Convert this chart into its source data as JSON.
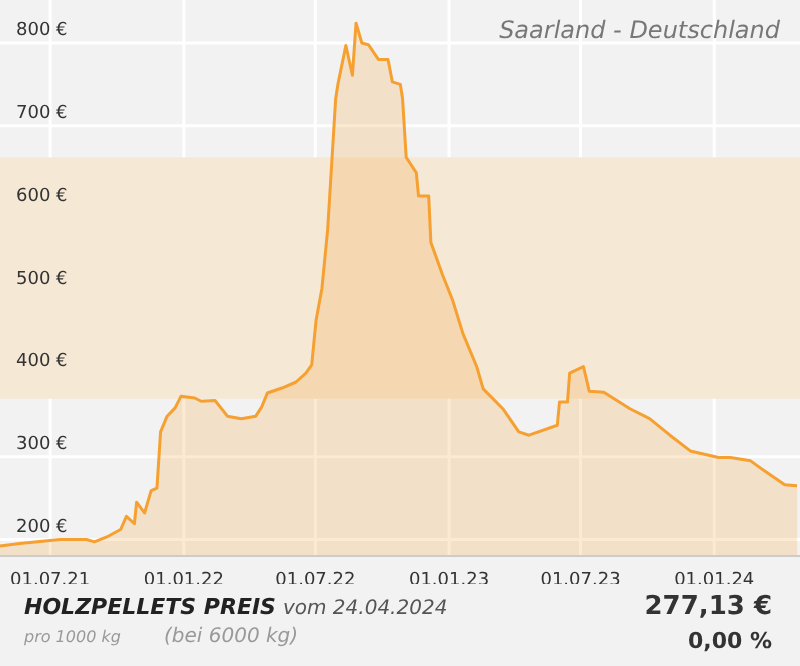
{
  "chart_data": {
    "type": "area",
    "title": "HOLZPELLETS PREIS",
    "subtitle": "Saarland - Deutschland",
    "annotations": [
      "vom 24.04.2024",
      "pro 1000 kg",
      "(bei 6000 kg)",
      "277,13 €",
      "0,00 %"
    ],
    "x": [
      "2021-04-23",
      "2021-05-20",
      "2021-07-15",
      "2021-08-20",
      "2021-08-31",
      "2021-09-17",
      "2021-10-06",
      "2021-10-14",
      "2021-10-25",
      "2021-10-28",
      "2021-11-08",
      "2021-11-17",
      "2021-11-25",
      "2021-11-30",
      "2021-12-09",
      "2021-12-20",
      "2021-12-28",
      "2022-01-16",
      "2022-01-25",
      "2022-02-13",
      "2022-03-02",
      "2022-03-21",
      "2022-04-10",
      "2022-04-18",
      "2022-04-26",
      "2022-05-16",
      "2022-06-04",
      "2022-06-18",
      "2022-06-26",
      "2022-07-02",
      "2022-07-10",
      "2022-07-18",
      "2022-07-29",
      "2022-08-01",
      "2022-08-12",
      "2022-08-21",
      "2022-08-26",
      "2022-09-03",
      "2022-09-12",
      "2022-09-26",
      "2022-10-09",
      "2022-10-15",
      "2022-10-26",
      "2022-10-29",
      "2022-11-03",
      "2022-11-17",
      "2022-11-20",
      "2022-12-04",
      "2022-12-07",
      "2022-12-23",
      "2023-01-06",
      "2023-01-20",
      "2023-02-08",
      "2023-02-17",
      "2023-03-16",
      "2023-04-07",
      "2023-04-21",
      "2023-05-30",
      "2023-06-02",
      "2023-06-13",
      "2023-06-16",
      "2023-07-05",
      "2023-07-13",
      "2023-08-02",
      "2023-09-07",
      "2023-10-04",
      "2023-11-01",
      "2023-11-29",
      "2024-01-07",
      "2024-01-23",
      "2024-02-20",
      "2024-03-10",
      "2024-04-07",
      "2024-04-24"
    ],
    "series": [
      {
        "color": "#f5a030",
        "values": [
          192,
          195,
          200,
          200,
          197,
          203,
          212,
          228,
          219,
          245,
          232,
          259,
          262,
          330,
          349,
          359,
          373,
          371,
          367,
          368,
          349,
          346,
          349,
          360,
          377,
          383,
          390,
          401,
          411,
          465,
          503,
          575,
          733,
          750,
          797,
          761,
          824,
          800,
          798,
          780,
          780,
          753,
          750,
          733,
          662,
          643,
          615,
          615,
          559,
          520,
          489,
          449,
          409,
          382,
          358,
          330,
          326,
          338,
          366,
          366,
          401,
          409,
          379,
          378,
          358,
          346,
          326,
          307,
          299,
          299,
          295,
          283,
          266,
          265
        ]
      }
    ],
    "xlim": [
      "2021-04-23",
      "2024-04-28"
    ],
    "xticks": [
      {
        "value": "2021-07-01",
        "label": "01.07.21"
      },
      {
        "value": "2022-01-01",
        "label": "01.01.22"
      },
      {
        "value": "2022-07-01",
        "label": "01.07.22"
      },
      {
        "value": "2023-01-01",
        "label": "01.01.23"
      },
      {
        "value": "2023-07-01",
        "label": "01.07.23"
      },
      {
        "value": "2024-01-01",
        "label": "01.01.24"
      }
    ],
    "ylim": [
      180,
      852
    ],
    "yticks": [
      {
        "value": 200,
        "label": "200 €"
      },
      {
        "value": 300,
        "label": "300 €"
      },
      {
        "value": 400,
        "label": "400 €"
      },
      {
        "value": 500,
        "label": "500 €"
      },
      {
        "value": 600,
        "label": "600 €"
      },
      {
        "value": 700,
        "label": "700 €"
      },
      {
        "value": 800,
        "label": "800 €"
      }
    ],
    "bands": [
      {
        "axis": "y",
        "from": 370,
        "to": 662,
        "color": "#f5e8d5"
      }
    ],
    "grid": true,
    "legend": false
  }
}
